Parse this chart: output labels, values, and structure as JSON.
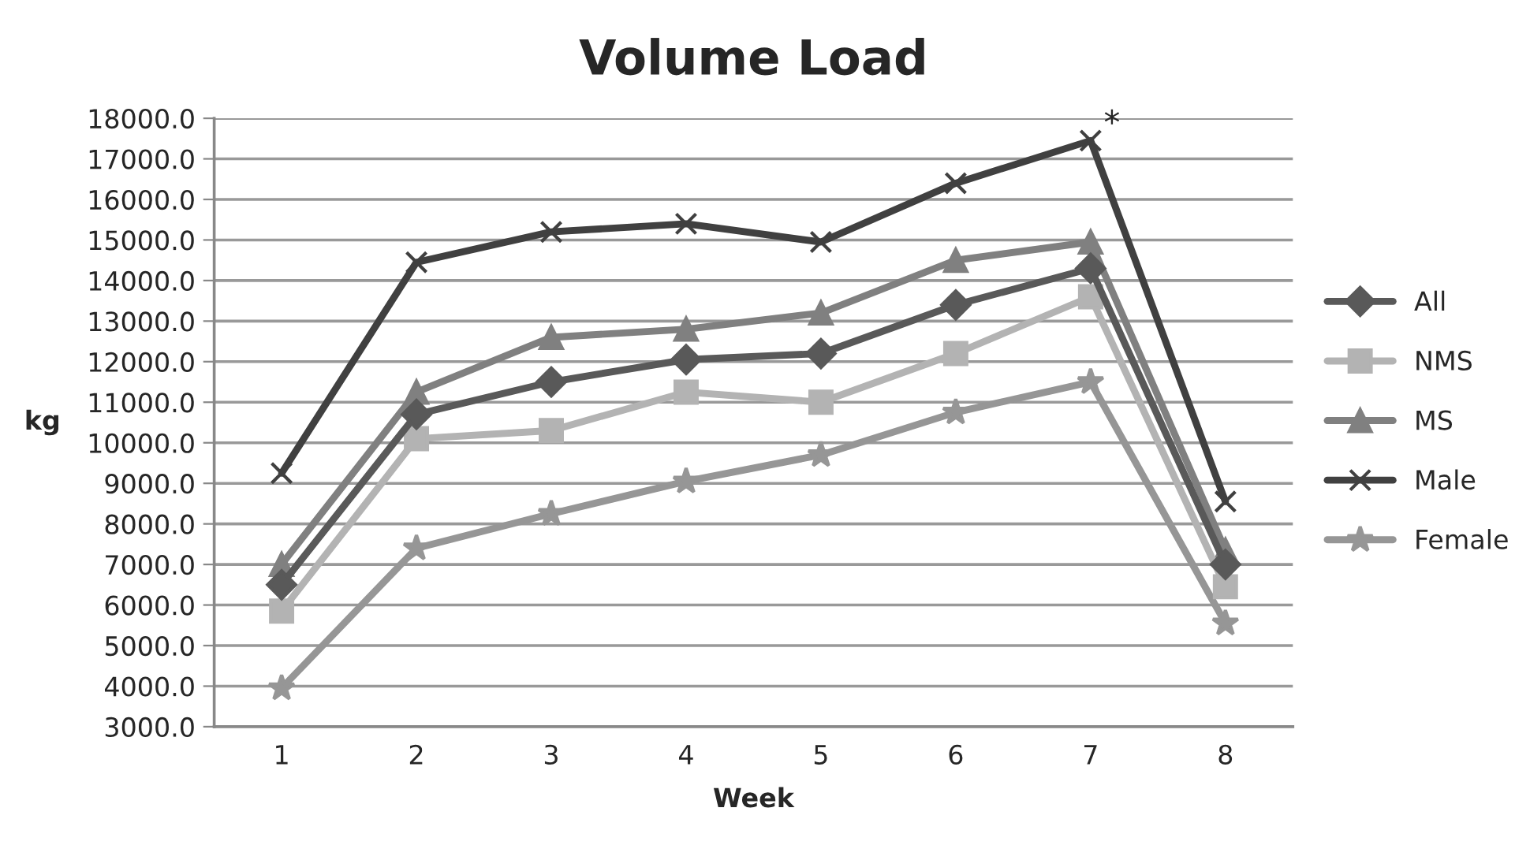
{
  "chart_data": {
    "type": "line",
    "title": "Volume Load",
    "xlabel": "Week",
    "ylabel": "kg",
    "categories": [
      "1",
      "2",
      "3",
      "4",
      "5",
      "6",
      "7",
      "8"
    ],
    "series": [
      {
        "name": "All",
        "color": "#595959",
        "marker": "diamond",
        "values": [
          6500,
          10700,
          11500,
          12050,
          12200,
          13400,
          14300,
          7000
        ]
      },
      {
        "name": "NMS",
        "color": "#b3b3b3",
        "marker": "square",
        "values": [
          5850,
          10100,
          10300,
          11250,
          11000,
          12200,
          13600,
          6450
        ]
      },
      {
        "name": "MS",
        "color": "#808080",
        "marker": "triangle",
        "values": [
          7000,
          11250,
          12600,
          12800,
          13200,
          14500,
          14950,
          7350
        ]
      },
      {
        "name": "Male",
        "color": "#404040",
        "marker": "cross",
        "values": [
          9250,
          14450,
          15200,
          15400,
          14950,
          16400,
          17450,
          8550
        ]
      },
      {
        "name": "Female",
        "color": "#969696",
        "marker": "star",
        "values": [
          3950,
          7400,
          8250,
          9050,
          9700,
          10750,
          11500,
          5550
        ]
      }
    ],
    "ylim": [
      3000,
      18000
    ],
    "yticks": [
      {
        "value": 3000,
        "label": "3000.0"
      },
      {
        "value": 4000,
        "label": "4000.0"
      },
      {
        "value": 5000,
        "label": "5000.0"
      },
      {
        "value": 6000,
        "label": "6000.0"
      },
      {
        "value": 7000,
        "label": "7000.0"
      },
      {
        "value": 8000,
        "label": "8000.0"
      },
      {
        "value": 9000,
        "label": "9000.0"
      },
      {
        "value": 10000,
        "label": "10000.0"
      },
      {
        "value": 11000,
        "label": "11000.0"
      },
      {
        "value": 12000,
        "label": "12000.0"
      },
      {
        "value": 13000,
        "label": "13000.0"
      },
      {
        "value": 14000,
        "label": "14000.0"
      },
      {
        "value": 15000,
        "label": "15000.0"
      },
      {
        "value": 16000,
        "label": "16000.0"
      },
      {
        "value": 17000,
        "label": "17000.0"
      },
      {
        "value": 18000,
        "label": "18000.0"
      }
    ],
    "grid": "y",
    "legend": "right",
    "line_style": "solid",
    "annotations": [
      {
        "text": "*",
        "x": "7",
        "y": 17450
      }
    ]
  }
}
